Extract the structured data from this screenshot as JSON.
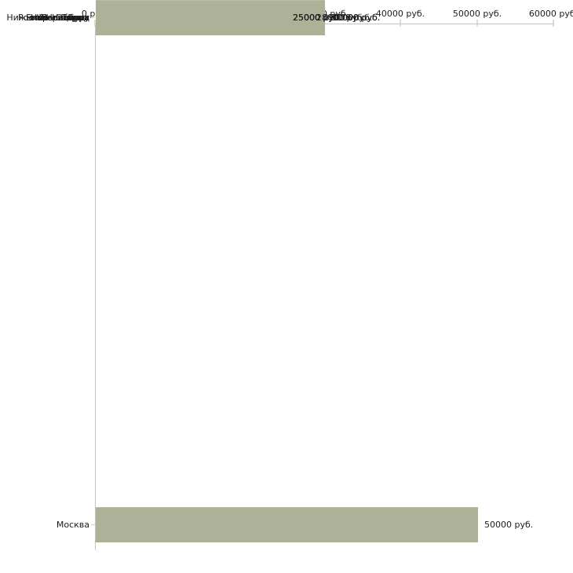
{
  "chart_data": {
    "type": "bar",
    "orientation": "horizontal",
    "title": "",
    "xlabel": "",
    "ylabel": "",
    "unit": "руб.",
    "categories": [
      "Москва",
      "Ростов-На-Дону",
      "Нижний Новгород",
      "Екатеринбург",
      "Новосибирск",
      "Красноярск",
      "Пермь",
      "Самара",
      "Челябинск",
      "Волгоград"
    ],
    "values": [
      50000,
      30000,
      30000,
      30000,
      29000,
      28000,
      25000,
      25000,
      25000,
      25000
    ],
    "value_labels": [
      "50000 руб.",
      "30000 руб.",
      "30000 руб.",
      "30000 руб.",
      "29000 руб.",
      "28000 руб.",
      "25000 руб.",
      "25000 руб.",
      "25000 руб.",
      "25000 руб."
    ],
    "x_ticks": [
      "0 руб.",
      "10000 руб.",
      "20000 руб.",
      "30000 руб.",
      "40000 руб.",
      "50000 руб.",
      "60000 руб."
    ],
    "xlim": [
      0,
      60000
    ],
    "grid": false,
    "legend": "none",
    "colors": {
      "bar": "#acb197",
      "axis": "#c6c6c6",
      "tick": "#dde0c3",
      "category_tick": "#cdcdc0",
      "text": "#1c1c1c",
      "background": "#ffffff"
    }
  }
}
